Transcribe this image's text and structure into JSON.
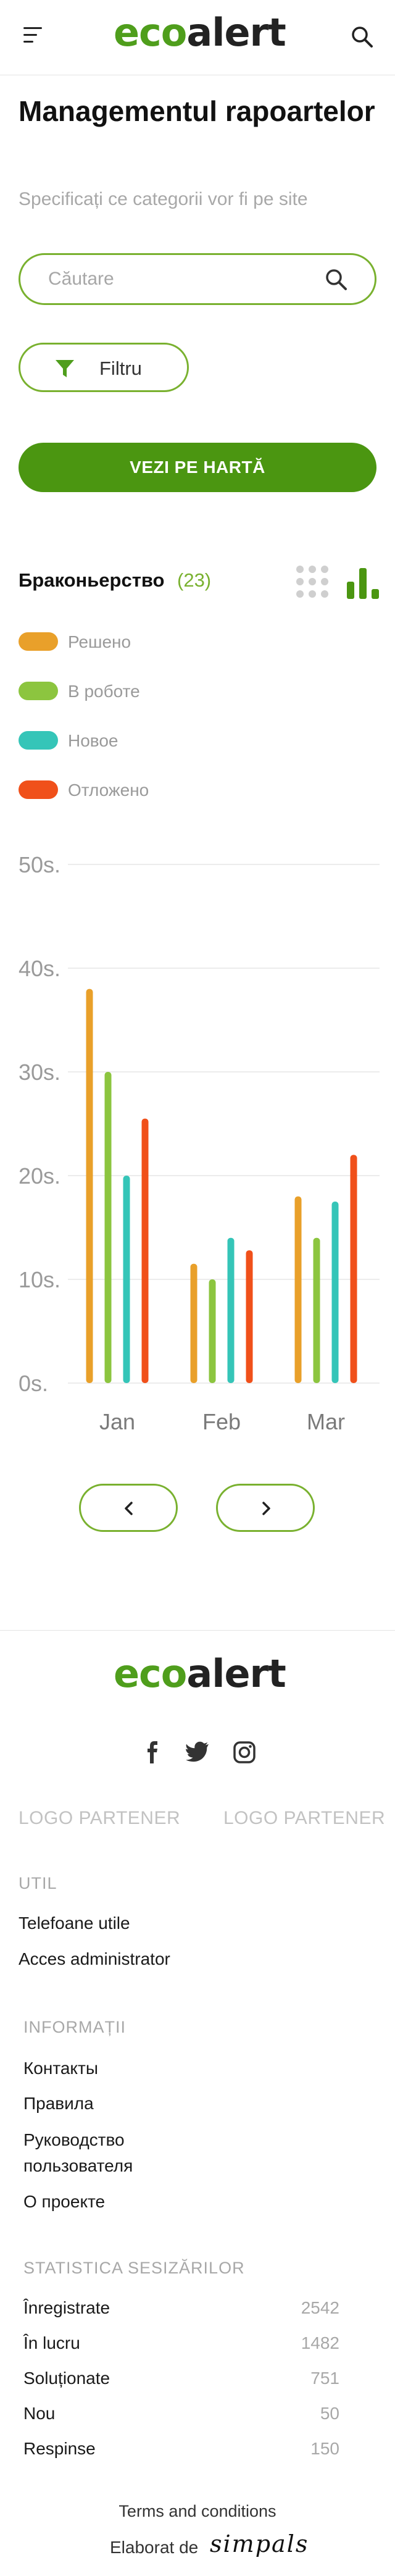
{
  "header": {
    "logo_eco": "eco",
    "logo_alert": "alert"
  },
  "page": {
    "title": "Managementul rapoartelor",
    "subtitle": "Specificați ce categorii vor fi pe site"
  },
  "search": {
    "placeholder": "Căutare",
    "value": ""
  },
  "filter": {
    "label": "Filtru"
  },
  "map_button": {
    "label": "VEZI PE HARTĂ"
  },
  "category": {
    "title": "Браконьерство",
    "count": "(23)"
  },
  "colors": {
    "accent": "#79b12f",
    "brand": "#4b9611",
    "resolved": "#e9a02a",
    "in_progress": "#8cc53f",
    "new": "#35c5b8",
    "postponed": "#f0501a"
  },
  "legend": [
    {
      "label": "Решено",
      "color": "#e9a02a"
    },
    {
      "label": "В роботе",
      "color": "#8cc53f"
    },
    {
      "label": "Новое",
      "color": "#35c5b8"
    },
    {
      "label": "Отложено",
      "color": "#f0501a"
    }
  ],
  "chart_data": {
    "type": "bar",
    "categories": [
      "Jan",
      "Feb",
      "Mar"
    ],
    "y_ticks": [
      "0s.",
      "10s.",
      "20s.",
      "30s.",
      "40s.",
      "50s."
    ],
    "ylim": [
      0,
      50
    ],
    "grid": true,
    "series": [
      {
        "name": "Решено",
        "color": "#e9a02a",
        "values": [
          38,
          11.5,
          18
        ]
      },
      {
        "name": "В роботе",
        "color": "#8cc53f",
        "values": [
          30,
          10,
          14
        ]
      },
      {
        "name": "Новое",
        "color": "#35c5b8",
        "values": [
          20,
          14,
          17.5
        ]
      },
      {
        "name": "Отложено",
        "color": "#f0501a",
        "values": [
          25.5,
          12.8,
          22
        ]
      }
    ]
  },
  "icons": {
    "menu": "hamburger-icon",
    "search": "search-icon",
    "filter": "funnel-icon",
    "grid_view": "grid-dots-icon",
    "bar_view": "bar-chart-icon",
    "prev": "chevron-left-icon",
    "next": "chevron-right-icon",
    "facebook": "facebook-icon",
    "twitter": "twitter-icon",
    "instagram": "instagram-icon"
  },
  "footer": {
    "logo_eco": "eco",
    "logo_alert": "alert",
    "partners": [
      "LOGO PARTENER",
      "LOGO PARTENER"
    ],
    "util": {
      "heading": "UTIL",
      "links": [
        "Telefoane utile",
        "Acces administrator"
      ]
    },
    "info": {
      "heading": "INFORMAȚII",
      "links": [
        "Контакты",
        "Правила",
        "Руководство",
        "пользователя",
        "О проекте"
      ]
    },
    "stats": {
      "heading": "STATISTICA SESIZĂRILOR",
      "rows": [
        {
          "label": "Înregistrate",
          "value": "2542"
        },
        {
          "label": "În lucru",
          "value": "1482"
        },
        {
          "label": "Soluționate",
          "value": "751"
        },
        {
          "label": "Nou",
          "value": "50"
        },
        {
          "label": "Respinse",
          "value": "150"
        }
      ]
    },
    "terms": "Terms and conditions",
    "made_by": "Elaborat de",
    "made_by_brand": "simpals"
  }
}
